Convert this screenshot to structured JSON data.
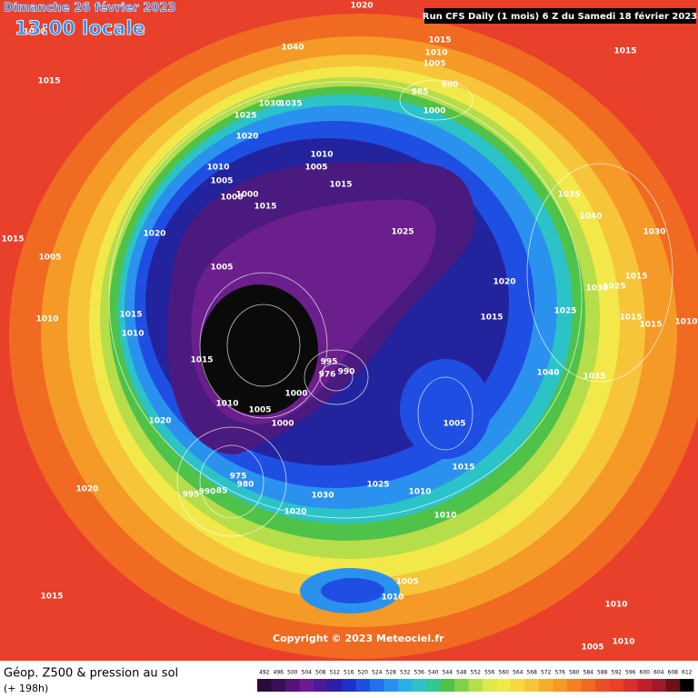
{
  "header": {
    "date": "Dimanche 26 février 2023",
    "time": "13:00 locale",
    "run": "Run CFS Daily (1 mois) 6 Z du Samedi 18 février 2023"
  },
  "map": {
    "isobar_labels": [
      "1020",
      "1010",
      "1015",
      "1010",
      "1005",
      "1015",
      "1040",
      "1015",
      "990",
      "985",
      "1000",
      "1030",
      "1035",
      "1025",
      "1020",
      "1010",
      "1005",
      "1010",
      "1005",
      "1015",
      "1000",
      "1000",
      "1015",
      "1035",
      "1040",
      "1025",
      "1020",
      "1030",
      "1015",
      "1005",
      "1005",
      "1020",
      "1015",
      "1030",
      "1025",
      "1015",
      "1015",
      "1025",
      "1015",
      "1010",
      "1010",
      "1015",
      "1010",
      "995",
      "1015",
      "976",
      "990",
      "1040",
      "1035",
      "1000",
      "1010",
      "1005",
      "1020",
      "1000",
      "1005",
      "1015",
      "975",
      "980",
      "1025",
      "1020",
      "995",
      "990",
      "85",
      "1030",
      "1010",
      "1020",
      "1010",
      "1005",
      "1010",
      "1015",
      "1010",
      "1010",
      "1005"
    ],
    "copyright": "Copyright © 2023 Meteociel.fr"
  },
  "legend": {
    "title": "Géop. Z500 & pression au sol",
    "lead": "(+ 198h)",
    "scale": [
      "492",
      "496",
      "500",
      "504",
      "508",
      "512",
      "516",
      "520",
      "524",
      "528",
      "532",
      "536",
      "540",
      "544",
      "548",
      "552",
      "556",
      "560",
      "564",
      "568",
      "572",
      "576",
      "580",
      "584",
      "588",
      "592",
      "596",
      "600",
      "604",
      "608",
      "612"
    ]
  }
}
